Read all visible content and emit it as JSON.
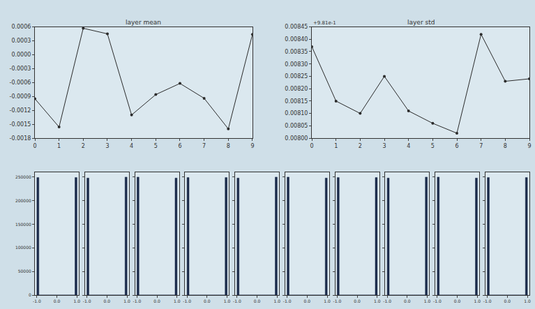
{
  "chart_data": [
    {
      "type": "line",
      "title": "layer mean",
      "color": "#2b2b2b",
      "marker": "circle",
      "x": [
        0,
        1,
        2,
        3,
        4,
        5,
        6,
        7,
        8,
        9
      ],
      "values": [
        -0.00095,
        -0.00156,
        0.00057,
        0.00045,
        -0.0013,
        -0.00086,
        -0.00062,
        -0.00094,
        -0.0016,
        0.00044
      ],
      "xlim": [
        0,
        9
      ],
      "xticks": [
        0,
        1,
        2,
        3,
        4,
        5,
        6,
        7,
        8,
        9
      ],
      "ylim": [
        -0.0018,
        0.0006
      ],
      "yticks": [
        -0.0018,
        -0.0015,
        -0.0012,
        -0.0009,
        -0.0006,
        -0.0003,
        {
          "value": 0,
          "label": "0.0000"
        },
        0.0003,
        0.0006
      ]
    },
    {
      "type": "line",
      "title": "layer std",
      "annotations": [
        "+9.81e-1"
      ],
      "color": "#2b2b2b",
      "marker": "circle",
      "x": [
        0,
        1,
        2,
        3,
        4,
        5,
        6,
        7,
        8,
        9
      ],
      "values": [
        0.00837,
        0.00815,
        0.0081,
        0.00825,
        0.00811,
        0.00806,
        0.00802,
        0.00842,
        0.00823,
        0.00824
      ],
      "xlim": [
        0,
        9
      ],
      "xticks": [
        0,
        1,
        2,
        3,
        4,
        5,
        6,
        7,
        8,
        9
      ],
      "ylim": [
        0.008,
        0.00845
      ],
      "yticks": [
        {
          "value": 0.008,
          "label": "0.00800"
        },
        {
          "value": 0.00805,
          "label": "0.00805"
        },
        {
          "value": 0.0081,
          "label": "0.00810"
        },
        {
          "value": 0.00815,
          "label": "0.00815"
        },
        {
          "value": 0.0082,
          "label": "0.00820"
        },
        {
          "value": 0.00825,
          "label": "0.00825"
        },
        {
          "value": 0.0083,
          "label": "0.00830"
        },
        {
          "value": 0.00835,
          "label": "0.00835"
        },
        {
          "value": 0.0084,
          "label": "0.00840"
        },
        {
          "value": 0.00845,
          "label": "0.00845"
        }
      ]
    },
    {
      "type": "histogram",
      "color": "#1a2a4a",
      "bins": [
        -1.0,
        -0.9,
        -0.8,
        -0.7,
        -0.6,
        -0.5,
        -0.4,
        -0.3,
        -0.2,
        -0.1,
        0.0,
        0.1,
        0.2,
        0.3,
        0.4,
        0.5,
        0.6,
        0.7,
        0.8,
        0.9,
        1.0
      ],
      "counts": [
        249000,
        0,
        0,
        0,
        0,
        0,
        0,
        0,
        0,
        0,
        0,
        0,
        0,
        0,
        0,
        0,
        0,
        0,
        0,
        249000
      ],
      "xlim": [
        -1.1,
        1.1
      ],
      "xticks": [
        {
          "value": -1,
          "label": "-1.0"
        },
        {
          "value": 0,
          "label": "0.0"
        },
        {
          "value": 1,
          "label": "1.0"
        }
      ],
      "ylim": [
        0,
        260000
      ],
      "yticks": [
        0,
        50000,
        100000,
        150000,
        200000,
        250000
      ]
    },
    {
      "type": "histogram",
      "color": "#1a2a4a",
      "tick_labels": "x",
      "bins": [
        -1.0,
        -0.9,
        -0.8,
        -0.7,
        -0.6,
        -0.5,
        -0.4,
        -0.3,
        -0.2,
        -0.1,
        0.0,
        0.1,
        0.2,
        0.3,
        0.4,
        0.5,
        0.6,
        0.7,
        0.8,
        0.9,
        1.0
      ],
      "counts": [
        248000,
        0,
        0,
        0,
        0,
        0,
        0,
        0,
        0,
        0,
        0,
        0,
        0,
        0,
        0,
        0,
        0,
        0,
        0,
        250000
      ],
      "xlim": [
        -1.1,
        1.1
      ],
      "xticks": [
        {
          "value": -1,
          "label": "-1.0"
        },
        {
          "value": 0,
          "label": "0.0"
        },
        {
          "value": 1,
          "label": "1.0"
        }
      ],
      "ylim": [
        0,
        260000
      ],
      "yticks": [
        0,
        50000,
        100000,
        150000,
        200000,
        250000
      ]
    },
    {
      "type": "histogram",
      "color": "#1a2a4a",
      "tick_labels": "x",
      "bins": [
        -1.0,
        -0.9,
        -0.8,
        -0.7,
        -0.6,
        -0.5,
        -0.4,
        -0.3,
        -0.2,
        -0.1,
        0.0,
        0.1,
        0.2,
        0.3,
        0.4,
        0.5,
        0.6,
        0.7,
        0.8,
        0.9,
        1.0
      ],
      "counts": [
        250000,
        0,
        0,
        0,
        0,
        0,
        0,
        0,
        0,
        0,
        0,
        0,
        0,
        0,
        0,
        0,
        0,
        0,
        0,
        248000
      ],
      "xlim": [
        -1.1,
        1.1
      ],
      "xticks": [
        {
          "value": -1,
          "label": "-1.0"
        },
        {
          "value": 0,
          "label": "0.0"
        },
        {
          "value": 1,
          "label": "1.0"
        }
      ],
      "ylim": [
        0,
        260000
      ],
      "yticks": [
        0,
        50000,
        100000,
        150000,
        200000,
        250000
      ]
    },
    {
      "type": "histogram",
      "color": "#1a2a4a",
      "tick_labels": "x",
      "bins": [
        -1.0,
        -0.9,
        -0.8,
        -0.7,
        -0.6,
        -0.5,
        -0.4,
        -0.3,
        -0.2,
        -0.1,
        0.0,
        0.1,
        0.2,
        0.3,
        0.4,
        0.5,
        0.6,
        0.7,
        0.8,
        0.9,
        1.0
      ],
      "counts": [
        249000,
        0,
        0,
        0,
        0,
        0,
        0,
        0,
        0,
        0,
        0,
        0,
        0,
        0,
        0,
        0,
        0,
        0,
        0,
        249000
      ],
      "xlim": [
        -1.1,
        1.1
      ],
      "xticks": [
        {
          "value": -1,
          "label": "-1.0"
        },
        {
          "value": 0,
          "label": "0.0"
        },
        {
          "value": 1,
          "label": "1.0"
        }
      ],
      "ylim": [
        0,
        260000
      ],
      "yticks": [
        0,
        50000,
        100000,
        150000,
        200000,
        250000
      ]
    },
    {
      "type": "histogram",
      "color": "#1a2a4a",
      "tick_labels": "x",
      "bins": [
        -1.0,
        -0.9,
        -0.8,
        -0.7,
        -0.6,
        -0.5,
        -0.4,
        -0.3,
        -0.2,
        -0.1,
        0.0,
        0.1,
        0.2,
        0.3,
        0.4,
        0.5,
        0.6,
        0.7,
        0.8,
        0.9,
        1.0
      ],
      "counts": [
        248000,
        0,
        0,
        0,
        0,
        0,
        0,
        0,
        0,
        0,
        0,
        0,
        0,
        0,
        0,
        0,
        0,
        0,
        0,
        250000
      ],
      "xlim": [
        -1.1,
        1.1
      ],
      "xticks": [
        {
          "value": -1,
          "label": "-1.0"
        },
        {
          "value": 0,
          "label": "0.0"
        },
        {
          "value": 1,
          "label": "1.0"
        }
      ],
      "ylim": [
        0,
        260000
      ],
      "yticks": [
        0,
        50000,
        100000,
        150000,
        200000,
        250000
      ]
    },
    {
      "type": "histogram",
      "color": "#1a2a4a",
      "tick_labels": "x",
      "bins": [
        -1.0,
        -0.9,
        -0.8,
        -0.7,
        -0.6,
        -0.5,
        -0.4,
        -0.3,
        -0.2,
        -0.1,
        0.0,
        0.1,
        0.2,
        0.3,
        0.4,
        0.5,
        0.6,
        0.7,
        0.8,
        0.9,
        1.0
      ],
      "counts": [
        250000,
        0,
        0,
        0,
        0,
        0,
        0,
        0,
        0,
        0,
        0,
        0,
        0,
        0,
        0,
        0,
        0,
        0,
        0,
        248000
      ],
      "xlim": [
        -1.1,
        1.1
      ],
      "xticks": [
        {
          "value": -1,
          "label": "-1.0"
        },
        {
          "value": 0,
          "label": "0.0"
        },
        {
          "value": 1,
          "label": "1.0"
        }
      ],
      "ylim": [
        0,
        260000
      ],
      "yticks": [
        0,
        50000,
        100000,
        150000,
        200000,
        250000
      ]
    },
    {
      "type": "histogram",
      "color": "#1a2a4a",
      "tick_labels": "x",
      "bins": [
        -1.0,
        -0.9,
        -0.8,
        -0.7,
        -0.6,
        -0.5,
        -0.4,
        -0.3,
        -0.2,
        -0.1,
        0.0,
        0.1,
        0.2,
        0.3,
        0.4,
        0.5,
        0.6,
        0.7,
        0.8,
        0.9,
        1.0
      ],
      "counts": [
        249000,
        0,
        0,
        0,
        0,
        0,
        0,
        0,
        0,
        0,
        0,
        0,
        0,
        0,
        0,
        0,
        0,
        0,
        0,
        249000
      ],
      "xlim": [
        -1.1,
        1.1
      ],
      "xticks": [
        {
          "value": -1,
          "label": "-1.0"
        },
        {
          "value": 0,
          "label": "0.0"
        },
        {
          "value": 1,
          "label": "1.0"
        }
      ],
      "ylim": [
        0,
        260000
      ],
      "yticks": [
        0,
        50000,
        100000,
        150000,
        200000,
        250000
      ]
    },
    {
      "type": "histogram",
      "color": "#1a2a4a",
      "tick_labels": "x",
      "bins": [
        -1.0,
        -0.9,
        -0.8,
        -0.7,
        -0.6,
        -0.5,
        -0.4,
        -0.3,
        -0.2,
        -0.1,
        0.0,
        0.1,
        0.2,
        0.3,
        0.4,
        0.5,
        0.6,
        0.7,
        0.8,
        0.9,
        1.0
      ],
      "counts": [
        248000,
        0,
        0,
        0,
        0,
        0,
        0,
        0,
        0,
        0,
        0,
        0,
        0,
        0,
        0,
        0,
        0,
        0,
        0,
        250000
      ],
      "xlim": [
        -1.1,
        1.1
      ],
      "xticks": [
        {
          "value": -1,
          "label": "-1.0"
        },
        {
          "value": 0,
          "label": "0.0"
        },
        {
          "value": 1,
          "label": "1.0"
        }
      ],
      "ylim": [
        0,
        260000
      ],
      "yticks": [
        0,
        50000,
        100000,
        150000,
        200000,
        250000
      ]
    },
    {
      "type": "histogram",
      "color": "#1a2a4a",
      "tick_labels": "x",
      "bins": [
        -1.0,
        -0.9,
        -0.8,
        -0.7,
        -0.6,
        -0.5,
        -0.4,
        -0.3,
        -0.2,
        -0.1,
        0.0,
        0.1,
        0.2,
        0.3,
        0.4,
        0.5,
        0.6,
        0.7,
        0.8,
        0.9,
        1.0
      ],
      "counts": [
        250000,
        0,
        0,
        0,
        0,
        0,
        0,
        0,
        0,
        0,
        0,
        0,
        0,
        0,
        0,
        0,
        0,
        0,
        0,
        248000
      ],
      "xlim": [
        -1.1,
        1.1
      ],
      "xticks": [
        {
          "value": -1,
          "label": "-1.0"
        },
        {
          "value": 0,
          "label": "0.0"
        },
        {
          "value": 1,
          "label": "1.0"
        }
      ],
      "ylim": [
        0,
        260000
      ],
      "yticks": [
        0,
        50000,
        100000,
        150000,
        200000,
        250000
      ]
    },
    {
      "type": "histogram",
      "color": "#1a2a4a",
      "tick_labels": "x",
      "bins": [
        -1.0,
        -0.9,
        -0.8,
        -0.7,
        -0.6,
        -0.5,
        -0.4,
        -0.3,
        -0.2,
        -0.1,
        0.0,
        0.1,
        0.2,
        0.3,
        0.4,
        0.5,
        0.6,
        0.7,
        0.8,
        0.9,
        1.0
      ],
      "counts": [
        249000,
        0,
        0,
        0,
        0,
        0,
        0,
        0,
        0,
        0,
        0,
        0,
        0,
        0,
        0,
        0,
        0,
        0,
        0,
        249000
      ],
      "xlim": [
        -1.1,
        1.1
      ],
      "xticks": [
        {
          "value": -1,
          "label": "-1.0"
        },
        {
          "value": 0,
          "label": "0.0"
        },
        {
          "value": 1,
          "label": "1.0"
        }
      ],
      "ylim": [
        0,
        260000
      ],
      "yticks": [
        0,
        50000,
        100000,
        150000,
        200000,
        250000
      ]
    }
  ]
}
